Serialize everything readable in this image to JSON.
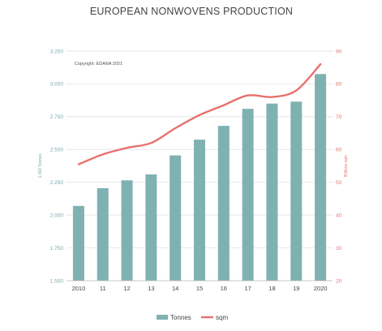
{
  "chart_data": {
    "type": "bar+line",
    "title": "EUROPEAN NONWOVENS PRODUCTION",
    "annotation": "Copyright: EDANA 2021",
    "categories": [
      "2010",
      "11",
      "12",
      "13",
      "14",
      "15",
      "16",
      "17",
      "18",
      "19",
      "2020"
    ],
    "series": [
      {
        "name": "Tonnes",
        "type": "bar",
        "axis": "left",
        "color": "#80b1b1",
        "values": [
          2070,
          2205,
          2265,
          2310,
          2455,
          2575,
          2680,
          2810,
          2850,
          2865,
          3075
        ]
      },
      {
        "name": "sqm",
        "type": "line",
        "axis": "right",
        "color": "#e8706b",
        "values": [
          55.5,
          58.5,
          60.5,
          62,
          66.5,
          70.5,
          73.5,
          76.5,
          76,
          78,
          86
        ]
      }
    ],
    "y_left": {
      "label": "1,000 Tonnes",
      "min": 1500,
      "max": 3250,
      "ticks": [
        "1.500",
        "1.750",
        "2.000",
        "2.250",
        "2.500",
        "2.750",
        "3.000",
        "3.250"
      ]
    },
    "y_right": {
      "label": "Billions sqm",
      "min": 20,
      "max": 90,
      "ticks": [
        "20",
        "30",
        "40",
        "50",
        "60",
        "70",
        "80",
        "90"
      ]
    },
    "grid": true,
    "legend_position": "bottom"
  }
}
